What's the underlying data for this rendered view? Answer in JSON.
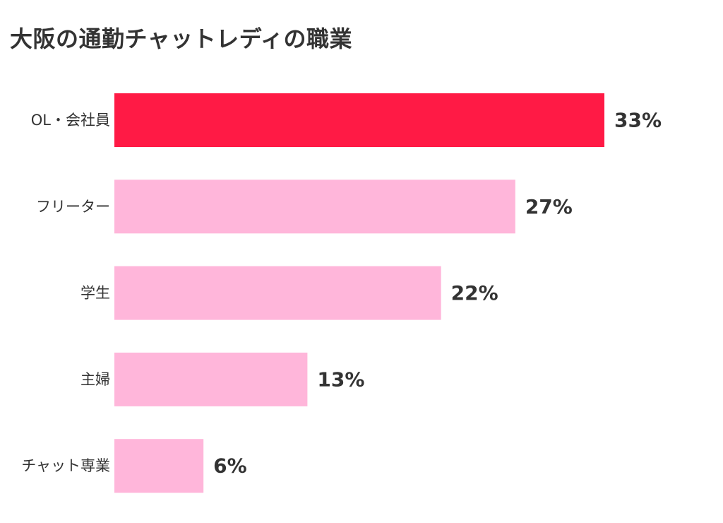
{
  "chart_data": {
    "type": "bar",
    "orientation": "horizontal",
    "title": "大阪の通勤チャットレディの職業",
    "categories": [
      "OL・会社員",
      "フリーター",
      "学生",
      "主婦",
      "チャット専業"
    ],
    "values": [
      33,
      27,
      22,
      13,
      6
    ],
    "value_labels": [
      "33%",
      "27%",
      "22%",
      "13%",
      "6%"
    ],
    "unit": "%",
    "xlim": [
      0,
      33
    ],
    "grid": false,
    "legend": "none",
    "colors": {
      "highlight": "#ff1a45",
      "bar": "#ffb6da"
    }
  }
}
